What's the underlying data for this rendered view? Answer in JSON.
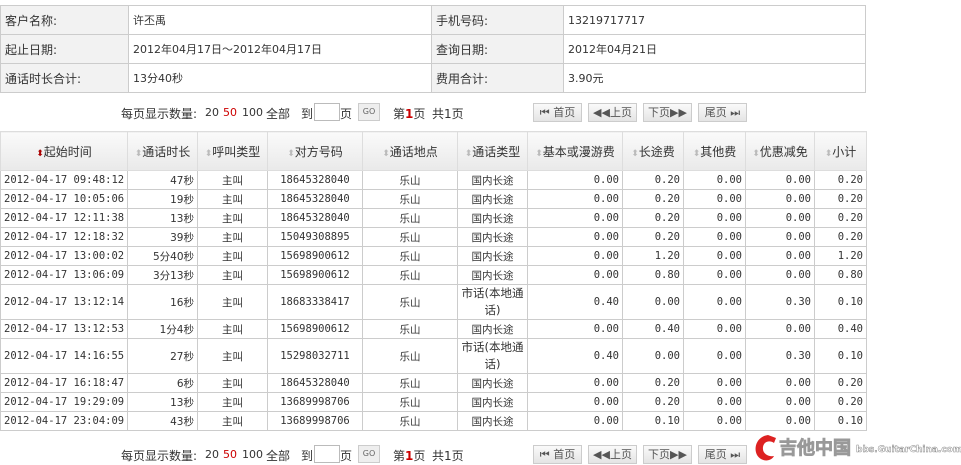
{
  "info": {
    "customer_label": "客户名称:",
    "customer": "许丕禹",
    "phone_label": "手机号码:",
    "phone": "13219717717",
    "range_label": "起止日期:",
    "range": "2012年04月17日～2012年04月17日",
    "query_label": "查询日期:",
    "query_date": "2012年04月21日",
    "duration_label": "通话时长合计:",
    "duration": "13分40秒",
    "fee_label": "费用合计:",
    "fee": "3.90元"
  },
  "pager": {
    "per_page_label": "每页显示数量:",
    "opt20": "20",
    "opt50": "50",
    "opt100": "100",
    "all": "全部",
    "goto": "到",
    "page_unit": "页",
    "go": "GO",
    "current_prefix": "第",
    "current": "1",
    "current_suffix": "页",
    "total": "共1页",
    "first": "首页",
    "prev": "上页",
    "next": "下页",
    "last": "尾页",
    "selected_color": "#cc0000"
  },
  "columns": [
    "起始时间",
    "通话时长",
    "呼叫类型",
    "对方号码",
    "通话地点",
    "通话类型",
    "基本或漫游费",
    "长途费",
    "其他费",
    "优惠减免",
    "小计"
  ],
  "rows": [
    [
      "2012-04-17 09:48:12",
      "47秒",
      "主叫",
      "18645328040",
      "乐山",
      "国内长途",
      "0.00",
      "0.20",
      "0.00",
      "0.00",
      "0.20"
    ],
    [
      "2012-04-17 10:05:06",
      "19秒",
      "主叫",
      "18645328040",
      "乐山",
      "国内长途",
      "0.00",
      "0.20",
      "0.00",
      "0.00",
      "0.20"
    ],
    [
      "2012-04-17 12:11:38",
      "13秒",
      "主叫",
      "18645328040",
      "乐山",
      "国内长途",
      "0.00",
      "0.20",
      "0.00",
      "0.00",
      "0.20"
    ],
    [
      "2012-04-17 12:18:32",
      "39秒",
      "主叫",
      "15049308895",
      "乐山",
      "国内长途",
      "0.00",
      "0.20",
      "0.00",
      "0.00",
      "0.20"
    ],
    [
      "2012-04-17 13:00:02",
      "5分40秒",
      "主叫",
      "15698900612",
      "乐山",
      "国内长途",
      "0.00",
      "1.20",
      "0.00",
      "0.00",
      "1.20"
    ],
    [
      "2012-04-17 13:06:09",
      "3分13秒",
      "主叫",
      "15698900612",
      "乐山",
      "国内长途",
      "0.00",
      "0.80",
      "0.00",
      "0.00",
      "0.80"
    ],
    [
      "2012-04-17 13:12:14",
      "16秒",
      "主叫",
      "18683338417",
      "乐山",
      "市话(本地通话)",
      "0.40",
      "0.00",
      "0.00",
      "0.30",
      "0.10"
    ],
    [
      "2012-04-17 13:12:53",
      "1分4秒",
      "主叫",
      "15698900612",
      "乐山",
      "国内长途",
      "0.00",
      "0.40",
      "0.00",
      "0.00",
      "0.40"
    ],
    [
      "2012-04-17 14:16:55",
      "27秒",
      "主叫",
      "15298032711",
      "乐山",
      "市话(本地通话)",
      "0.40",
      "0.00",
      "0.00",
      "0.30",
      "0.10"
    ],
    [
      "2012-04-17 16:18:47",
      "6秒",
      "主叫",
      "18645328040",
      "乐山",
      "国内长途",
      "0.00",
      "0.20",
      "0.00",
      "0.00",
      "0.20"
    ],
    [
      "2012-04-17 19:29:09",
      "13秒",
      "主叫",
      "13689998706",
      "乐山",
      "国内长途",
      "0.00",
      "0.20",
      "0.00",
      "0.00",
      "0.20"
    ],
    [
      "2012-04-17 23:04:09",
      "43秒",
      "主叫",
      "13689998706",
      "乐山",
      "国内长途",
      "0.00",
      "0.10",
      "0.00",
      "0.00",
      "0.10"
    ]
  ],
  "watermark": {
    "text": "吉他中国",
    "url": "bbs.GuitarChina.com"
  }
}
